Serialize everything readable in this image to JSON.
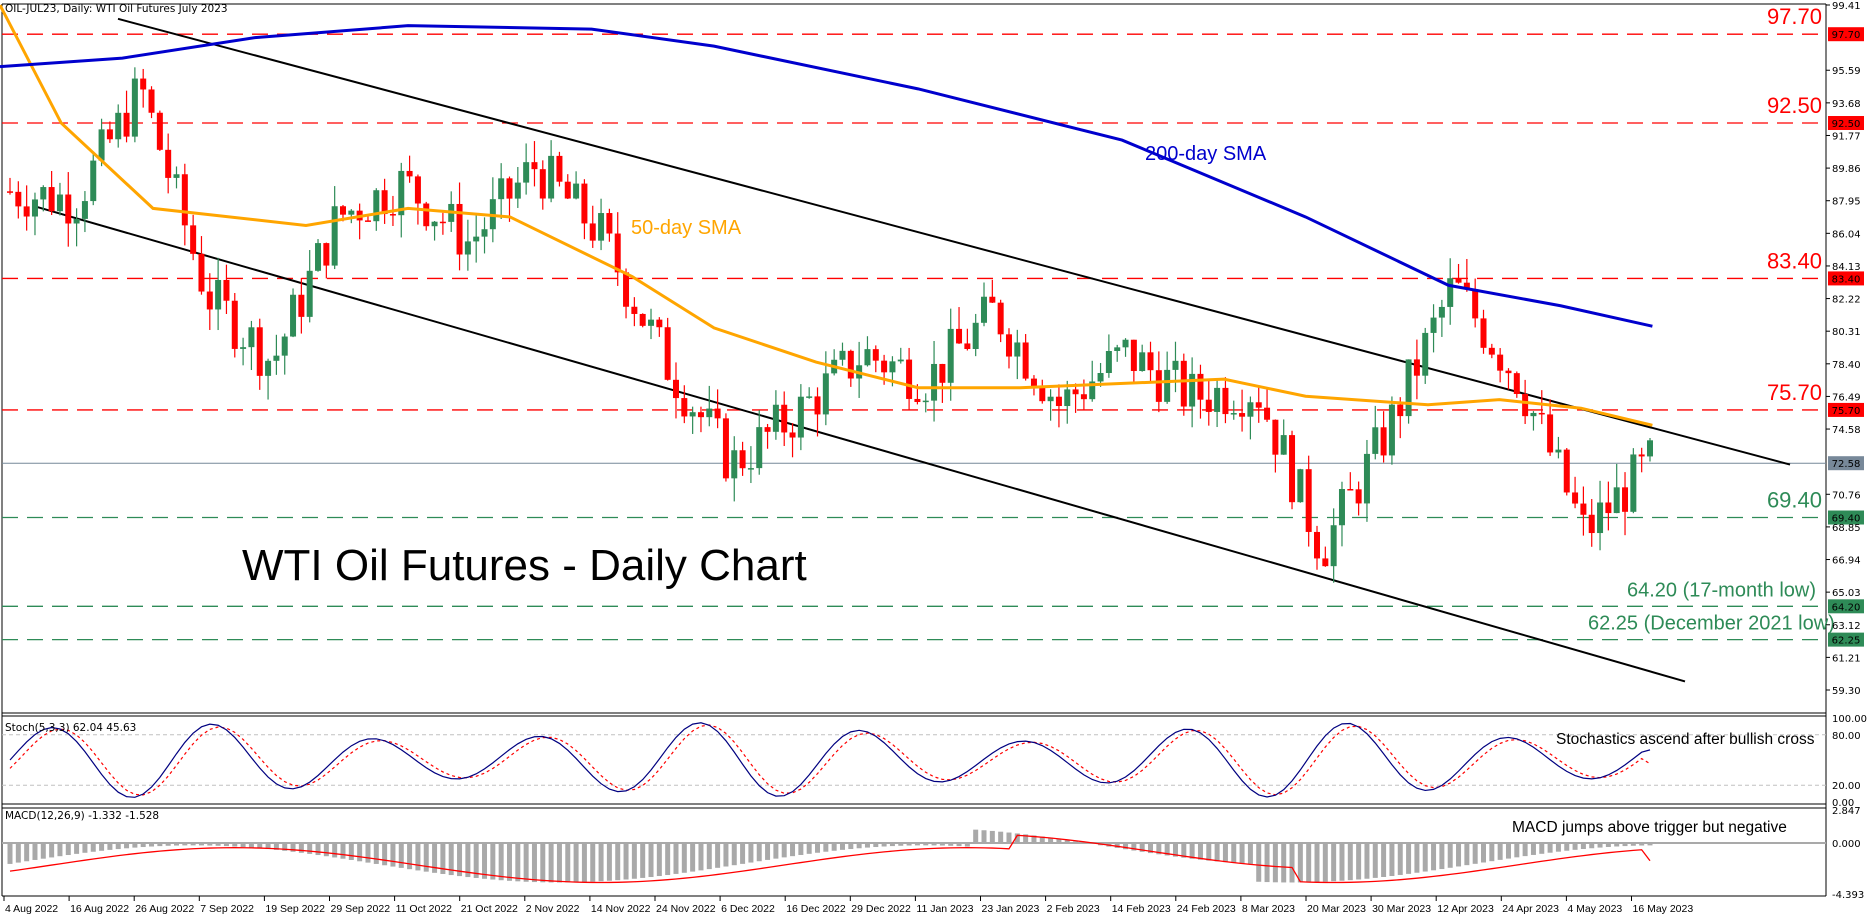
{
  "window": {
    "header": "OIL-JUL23, Daily:  WTI Oil Futures July 2023"
  },
  "title": "WTI Oil Futures - Daily Chart",
  "colors": {
    "bull": "#2e8b57",
    "bear": "#ff0000",
    "sma50": "#ffa500",
    "sma200": "#0000cd",
    "channel": "#000000",
    "resistance": "#ff0000",
    "support": "#2e8b57",
    "last_price": "#778899",
    "stoch_main": "#000080",
    "stoch_signal": "#ff0000",
    "macd_hist": "#a9a9a9",
    "macd_signal": "#ff0000"
  },
  "price_axis": {
    "ticks": [
      "99.41",
      "95.59",
      "93.68",
      "91.77",
      "89.86",
      "87.95",
      "86.04",
      "84.13",
      "82.22",
      "80.31",
      "78.40",
      "76.49",
      "74.58",
      "70.76",
      "68.85",
      "66.94",
      "65.03",
      "63.12",
      "61.21",
      "59.30"
    ],
    "min": 58.4,
    "max": 99.6
  },
  "levels": [
    {
      "value": 97.7,
      "label": "97.70",
      "tag": "97.70",
      "type": "resistance"
    },
    {
      "value": 92.5,
      "label": "92.50",
      "tag": "92.50",
      "type": "resistance"
    },
    {
      "value": 83.4,
      "label": "83.40",
      "tag": "83.40",
      "type": "resistance"
    },
    {
      "value": 75.7,
      "label": "75.70",
      "tag": "75.70",
      "type": "resistance"
    },
    {
      "value": 69.4,
      "label": "69.40",
      "tag": "69.40",
      "type": "support"
    },
    {
      "value": 64.2,
      "label": "64.20 (17-month low)",
      "tag": "64.20",
      "type": "support"
    },
    {
      "value": 62.25,
      "label": "62.25 (December 2021 low)",
      "tag": "62.25",
      "type": "support"
    }
  ],
  "last_price": {
    "value": 72.58,
    "tag": "72.58"
  },
  "annotations": {
    "sma200": "200-day SMA",
    "sma50": "50-day SMA",
    "stoch_note": "Stochastics ascend after bullish cross",
    "macd_note": "MACD jumps above trigger but negative"
  },
  "stoch": {
    "header": "Stoch(5,3,3) 62.04 45.63",
    "ticks": [
      "100.00",
      "80.00",
      "20.00",
      "0.00"
    ]
  },
  "macd": {
    "header": "MACD(12,26,9) -1.332 -1.528",
    "ticks": [
      "2.847",
      "0.000",
      "-4.393"
    ]
  },
  "date_axis": [
    "4 Aug 2022",
    "16 Aug 2022",
    "26 Aug 2022",
    "7 Sep 2022",
    "19 Sep 2022",
    "29 Sep 2022",
    "11 Oct 2022",
    "21 Oct 2022",
    "2 Nov 2022",
    "14 Nov 2022",
    "24 Nov 2022",
    "6 Dec 2022",
    "16 Dec 2022",
    "29 Dec 2022",
    "11 Jan 2023",
    "23 Jan 2023",
    "2 Feb 2023",
    "14 Feb 2023",
    "24 Feb 2023",
    "8 Mar 2023",
    "20 Mar 2023",
    "30 Mar 2023",
    "12 Apr 2023",
    "24 Apr 2023",
    "4 May 2023",
    "16 May 2023"
  ],
  "chart_data": {
    "type": "candlestick",
    "title": "WTI Oil Futures - Daily Chart",
    "subtitle": "OIL-JUL23, Daily: WTI Oil Futures July 2023",
    "x_ticks": [
      "4 Aug 2022",
      "16 Aug 2022",
      "26 Aug 2022",
      "7 Sep 2022",
      "19 Sep 2022",
      "29 Sep 2022",
      "11 Oct 2022",
      "21 Oct 2022",
      "2 Nov 2022",
      "14 Nov 2022",
      "24 Nov 2022",
      "6 Dec 2022",
      "16 Dec 2022",
      "29 Dec 2022",
      "11 Jan 2023",
      "23 Jan 2023",
      "2 Feb 2023",
      "14 Feb 2023",
      "24 Feb 2023",
      "8 Mar 2023",
      "20 Mar 2023",
      "30 Mar 2023",
      "12 Apr 2023",
      "24 Apr 2023",
      "4 May 2023",
      "16 May 2023"
    ],
    "ylim": [
      59.3,
      99.41
    ],
    "approx_close_path": [
      {
        "date": "4 Aug 2022",
        "close": 88.5
      },
      {
        "date": "16 Aug 2022",
        "close": 88.0
      },
      {
        "date": "26 Aug 2022",
        "close": 94.5
      },
      {
        "date": "7 Sep 2022",
        "close": 82.5
      },
      {
        "date": "19 Sep 2022",
        "close": 78.5
      },
      {
        "date": "29 Sep 2022",
        "close": 87.0
      },
      {
        "date": "11 Oct 2022",
        "close": 89.0
      },
      {
        "date": "21 Oct 2022",
        "close": 85.5
      },
      {
        "date": "2 Nov 2022",
        "close": 90.0
      },
      {
        "date": "14 Nov 2022",
        "close": 86.0
      },
      {
        "date": "24 Nov 2022",
        "close": 78.5
      },
      {
        "date": "6 Dec 2022",
        "close": 72.5
      },
      {
        "date": "16 Dec 2022",
        "close": 75.5
      },
      {
        "date": "29 Dec 2022",
        "close": 79.0
      },
      {
        "date": "11 Jan 2023",
        "close": 77.5
      },
      {
        "date": "23 Jan 2023",
        "close": 81.5
      },
      {
        "date": "2 Feb 2023",
        "close": 76.0
      },
      {
        "date": "14 Feb 2023",
        "close": 79.0
      },
      {
        "date": "24 Feb 2023",
        "close": 76.5
      },
      {
        "date": "8 Mar 2023",
        "close": 77.0
      },
      {
        "date": "20 Mar 2023",
        "close": 67.5
      },
      {
        "date": "30 Mar 2023",
        "close": 74.5
      },
      {
        "date": "12 Apr 2023",
        "close": 83.0
      },
      {
        "date": "24 Apr 2023",
        "close": 77.5
      },
      {
        "date": "4 May 2023",
        "close": 68.5
      },
      {
        "date": "16 May 2023",
        "close": 72.58
      }
    ],
    "series": [
      {
        "name": "50-day SMA",
        "approx": [
          [
            0,
            99.4
          ],
          [
            60,
            92.5
          ],
          [
            150,
            87.5
          ],
          [
            300,
            86.5
          ],
          [
            400,
            87.5
          ],
          [
            500,
            87.0
          ],
          [
            620,
            83.5
          ],
          [
            700,
            80.5
          ],
          [
            800,
            78.5
          ],
          [
            900,
            77.0
          ],
          [
            1000,
            77.0
          ],
          [
            1200,
            77.5
          ],
          [
            1280,
            76.5
          ],
          [
            1400,
            76.0
          ],
          [
            1470,
            76.3
          ],
          [
            1550,
            75.8
          ],
          [
            1620,
            74.8
          ]
        ]
      },
      {
        "name": "200-day SMA",
        "approx": [
          [
            0,
            95.8
          ],
          [
            120,
            96.3
          ],
          [
            250,
            97.5
          ],
          [
            400,
            98.2
          ],
          [
            580,
            98.0
          ],
          [
            700,
            97.0
          ],
          [
            900,
            94.5
          ],
          [
            1100,
            91.5
          ],
          [
            1280,
            87.0
          ],
          [
            1420,
            83.0
          ],
          [
            1530,
            81.8
          ],
          [
            1620,
            80.6
          ]
        ]
      }
    ],
    "horizontal_levels": [
      97.7,
      92.5,
      83.4,
      75.7,
      69.4,
      64.2,
      62.25
    ],
    "level_labels": {
      "97.70": "97.70",
      "92.50": "92.50",
      "83.40": "83.40",
      "75.70": "75.70",
      "69.40": "69.40",
      "64.20": "64.20 (17-month low)",
      "62.25": "62.25 (December 2021 low)"
    },
    "last_price": 72.58,
    "channel": {
      "upper": [
        [
          "16 Aug 2022",
          98.6
        ],
        [
          "end",
          72.4
        ]
      ],
      "lower": [
        [
          "4 Aug 2022",
          87.6
        ],
        [
          "end",
          59.8
        ]
      ]
    },
    "indicators": {
      "stochastic": {
        "params": "5,3,3",
        "main": 62.04,
        "signal": 45.63,
        "levels": [
          20,
          80
        ],
        "range": [
          0,
          100
        ]
      },
      "macd": {
        "params": "12,26,9",
        "macd": -1.332,
        "signal": -1.528,
        "range": [
          -4.393,
          2.847
        ]
      }
    },
    "annotations": [
      "200-day SMA",
      "50-day SMA",
      "Stochastics ascend after bullish cross",
      "MACD jumps above trigger but negative"
    ]
  }
}
